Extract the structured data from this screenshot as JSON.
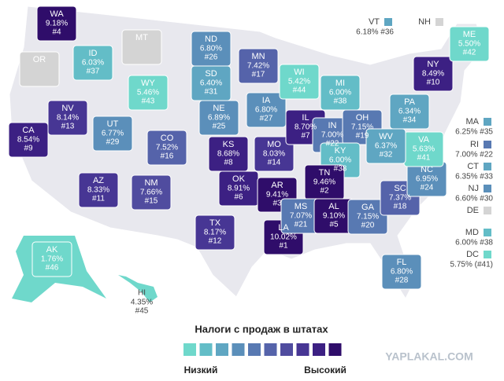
{
  "title": "Налоги с продаж в штатах",
  "legend": {
    "low": "Низкий",
    "high": "Высокий",
    "colors": [
      "#6fd8cb",
      "#63bdc7",
      "#5fa6c2",
      "#5b8fba",
      "#5879b2",
      "#5563aa",
      "#504c9f",
      "#473694",
      "#3c2083",
      "#2f0d6a"
    ],
    "no_data_color": "#d4d4d4"
  },
  "states": [
    {
      "abbr": "WA",
      "rate": "9.18%",
      "rank": "#4",
      "level": 9,
      "pos": "72,30"
    },
    {
      "abbr": "OR",
      "level": null,
      "pos": "50,88"
    },
    {
      "abbr": "MT",
      "level": null,
      "pos": "180,60"
    },
    {
      "abbr": "ID",
      "rate": "6.03%",
      "rank": "#37",
      "level": 1,
      "pos": "118,80"
    },
    {
      "abbr": "WY",
      "rate": "5.46%",
      "rank": "#43",
      "level": 0,
      "pos": "188,118"
    },
    {
      "abbr": "NV",
      "rate": "8.14%",
      "rank": "#13",
      "level": 7,
      "pos": "86,150"
    },
    {
      "abbr": "UT",
      "rate": "6.77%",
      "rank": "#29",
      "level": 3,
      "pos": "143,170"
    },
    {
      "abbr": "CO",
      "rate": "7.52%",
      "rank": "#16",
      "level": 5,
      "pos": "212,188"
    },
    {
      "abbr": "CA",
      "rate": "8.54%",
      "rank": "#9",
      "level": 8,
      "pos": "36,178"
    },
    {
      "abbr": "AZ",
      "rate": "8.33%",
      "rank": "#11",
      "level": 7,
      "pos": "125,242"
    },
    {
      "abbr": "NM",
      "rate": "7.66%",
      "rank": "#15",
      "level": 6,
      "pos": "192,245"
    },
    {
      "abbr": "ND",
      "rate": "6.80%",
      "rank": "#26",
      "level": 3,
      "pos": "268,62"
    },
    {
      "abbr": "SD",
      "rate": "6.40%",
      "rank": "#31",
      "level": 2,
      "pos": "268,106"
    },
    {
      "abbr": "NE",
      "rate": "6.89%",
      "rank": "#25",
      "level": 3,
      "pos": "278,150"
    },
    {
      "abbr": "KS",
      "rate": "8.68%",
      "rank": "#8",
      "level": 8,
      "pos": "290,196"
    },
    {
      "abbr": "OK",
      "rate": "8.91%",
      "rank": "#6",
      "level": 8,
      "pos": "303,240"
    },
    {
      "abbr": "TX",
      "rate": "8.17%",
      "rank": "#12",
      "level": 7,
      "pos": "273,296"
    },
    {
      "abbr": "MN",
      "rate": "7.42%",
      "rank": "#17",
      "level": 5,
      "pos": "328,84"
    },
    {
      "abbr": "IA",
      "rate": "6.80%",
      "rank": "#27",
      "level": 3,
      "pos": "338,140"
    },
    {
      "abbr": "MO",
      "rate": "8.03%",
      "rank": "#14",
      "level": 7,
      "pos": "348,196"
    },
    {
      "abbr": "AR",
      "rate": "9.41%",
      "rank": "#3",
      "level": 9,
      "pos": "352,248"
    },
    {
      "abbr": "LA",
      "rate": "10.02%",
      "rank": "#1",
      "level": 9,
      "pos": "360,302"
    },
    {
      "abbr": "WI",
      "rate": "5.42%",
      "rank": "#44",
      "level": 0,
      "pos": "380,104"
    },
    {
      "abbr": "IL",
      "rate": "8.70%",
      "rank": "#7",
      "level": 8,
      "pos": "388,162"
    },
    {
      "abbr": "MI",
      "rate": "6.00%",
      "rank": "#38",
      "level": 1,
      "pos": "432,118"
    },
    {
      "abbr": "IN",
      "rate": "7.00%",
      "rank": "#22",
      "level": 4,
      "pos": "422,172"
    },
    {
      "abbr": "OH",
      "rate": "7.15%",
      "rank": "#19",
      "level": 4,
      "pos": "460,162"
    },
    {
      "abbr": "KY",
      "rate": "6.00%",
      "rank": "#38",
      "level": 1,
      "pos": "432,204"
    },
    {
      "abbr": "TN",
      "rate": "9.46%",
      "rank": "#2",
      "level": 9,
      "pos": "412,232"
    },
    {
      "abbr": "MS",
      "rate": "7.07%",
      "rank": "#21",
      "level": 4,
      "pos": "382,275"
    },
    {
      "abbr": "AL",
      "rate": "9.10%",
      "rank": "#5",
      "level": 9,
      "pos": "424,275"
    },
    {
      "abbr": "GA",
      "rate": "7.15%",
      "rank": "#20",
      "level": 4,
      "pos": "467,276"
    },
    {
      "abbr": "FL",
      "rate": "6.80%",
      "rank": "#28",
      "level": 3,
      "pos": "510,346"
    },
    {
      "abbr": "SC",
      "rate": "7.37%",
      "rank": "#18",
      "level": 5,
      "pos": "508,252"
    },
    {
      "abbr": "NC",
      "rate": "6.95%",
      "rank": "#24",
      "level": 3,
      "pos": "542,228"
    },
    {
      "abbr": "VA",
      "rate": "5.63%",
      "rank": "#41",
      "level": 0,
      "pos": "538,190"
    },
    {
      "abbr": "WV",
      "rate": "6.37%",
      "rank": "#32",
      "level": 2,
      "pos": "490,186"
    },
    {
      "abbr": "PA",
      "rate": "6.34%",
      "rank": "#34",
      "level": 2,
      "pos": "520,142"
    },
    {
      "abbr": "NY",
      "rate": "8.49%",
      "rank": "#10",
      "level": 8,
      "pos": "550,94"
    },
    {
      "abbr": "ME",
      "rate": "5.50%",
      "rank": "#42",
      "level": 0,
      "pos": "596,56"
    },
    {
      "abbr": "AK",
      "rate": "1.76%",
      "rank": "#46",
      "level": 0,
      "pos": "66,330"
    }
  ],
  "outside_states": [
    {
      "abbr": "HI",
      "rate": "4.35%",
      "rank": "#45",
      "level": 0,
      "pos": "180,385"
    }
  ],
  "side_states": [
    {
      "abbr": "VT",
      "value": "6.18% #36",
      "level": 2,
      "pos": "470,28"
    },
    {
      "abbr": "NH",
      "level": null,
      "pos": "535,28"
    },
    {
      "abbr": "MA",
      "value": "6.25% #35",
      "level": 2,
      "pos": "596,155"
    },
    {
      "abbr": "RI",
      "value": "7.00% #22",
      "level": 4,
      "pos": "596,184"
    },
    {
      "abbr": "CT",
      "value": "6.35% #33",
      "level": 2,
      "pos": "596,212"
    },
    {
      "abbr": "NJ",
      "value": "6.60% #30",
      "level": 3,
      "pos": "596,240"
    },
    {
      "abbr": "DE",
      "level": null,
      "pos": "596,268"
    },
    {
      "abbr": "MD",
      "value": "6.00% #38",
      "level": 1,
      "pos": "596,296"
    },
    {
      "abbr": "DC",
      "value": "5.75% (#41)",
      "level": 0,
      "pos": "596,324"
    }
  ],
  "watermark": "YAPLAKAL.COM"
}
